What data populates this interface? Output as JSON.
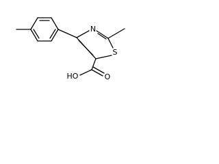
{
  "labels": [
    "N",
    "S",
    "HO",
    "O"
  ]
}
